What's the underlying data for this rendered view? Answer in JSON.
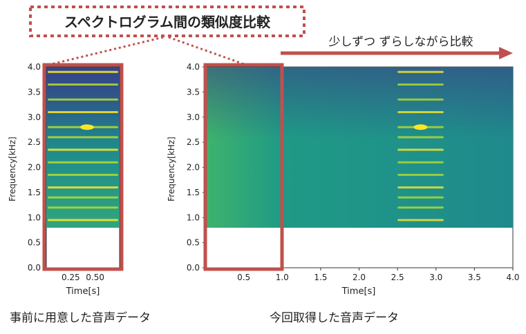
{
  "title": "スペクトログラム間の類似度比較",
  "shift_label": "少しずつ ずらしながら比較",
  "colors": {
    "accent": "#c0504d",
    "spec_low": "#3b4f8a",
    "spec_mid": "#21918c",
    "spec_high": "#fde725"
  },
  "left_plot": {
    "caption": "事前に用意した音声データ",
    "ylabel": "Frequency[kHz]",
    "xlabel": "Time[s]",
    "yticks": [
      "0.0",
      "0.5",
      "1.0",
      "1.5",
      "2.0",
      "2.5",
      "3.0",
      "3.5",
      "4.0"
    ],
    "xticks": [
      "0.25",
      "0.50"
    ]
  },
  "right_plot": {
    "caption": "今回取得した音声データ",
    "ylabel": "Frequency[kHz]",
    "xlabel": "Time[s]",
    "yticks": [
      "0.0",
      "0.5",
      "1.0",
      "1.5",
      "2.0",
      "2.5",
      "3.0",
      "3.5",
      "4.0"
    ],
    "xticks": [
      "0.5",
      "1.0",
      "1.5",
      "2.0",
      "2.5",
      "3.0",
      "3.5",
      "4.0"
    ]
  },
  "chart_data": [
    {
      "type": "heatmap",
      "xlabel": "Time[s]",
      "ylabel": "Frequency[kHz]",
      "ylim": [
        0,
        4.0
      ],
      "xlim": [
        0,
        0.75
      ],
      "signal_band_khz": [
        0.8,
        4.0
      ],
      "harmonic_lines_khz": [
        0.95,
        1.2,
        1.4,
        1.6,
        1.85,
        2.1,
        2.35,
        2.6,
        2.8,
        3.1,
        3.35,
        3.65,
        3.9
      ]
    },
    {
      "type": "heatmap",
      "xlabel": "Time[s]",
      "ylabel": "Frequency[kHz]",
      "ylim": [
        0,
        4.0
      ],
      "xlim": [
        0,
        4.0
      ],
      "signal_band_khz": [
        0.8,
        4.0
      ],
      "harmonic_event_time_s": [
        2.5,
        3.1
      ],
      "harmonic_lines_khz": [
        0.95,
        1.2,
        1.4,
        1.6,
        1.85,
        2.1,
        2.35,
        2.6,
        2.8,
        3.1,
        3.35,
        3.65,
        3.9
      ]
    }
  ]
}
